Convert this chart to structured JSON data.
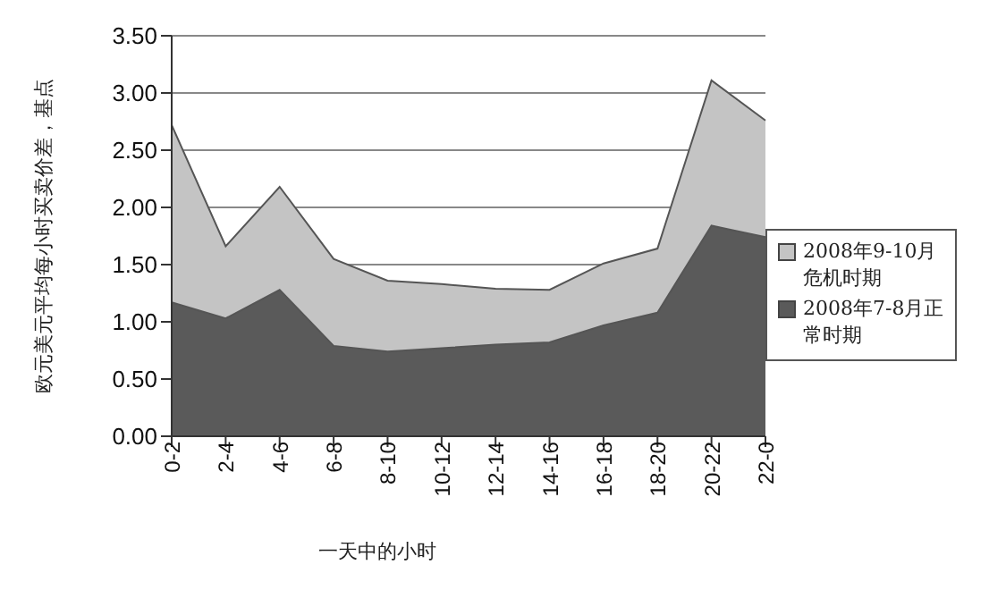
{
  "chart_data": {
    "type": "area",
    "ylabel": "欧元美元平均每小时买卖价差，基点",
    "xlabel": "一天中的小时",
    "categories": [
      "0-2",
      "2-4",
      "4-6",
      "6-8",
      "8-10",
      "10-12",
      "12-14",
      "14-16",
      "16-18",
      "18-20",
      "20-22",
      "22-0"
    ],
    "series": [
      {
        "name": "2008年9-10月危机时期",
        "color": "#c4c4c4",
        "values": [
          2.72,
          1.66,
          2.18,
          1.55,
          1.36,
          1.33,
          1.29,
          1.28,
          1.51,
          1.64,
          3.11,
          2.76
        ]
      },
      {
        "name": "2008年7-8月正常时期",
        "color": "#5a5a5a",
        "values": [
          1.17,
          1.03,
          1.28,
          0.79,
          0.74,
          0.77,
          0.8,
          0.82,
          0.97,
          1.08,
          1.84,
          1.74
        ]
      }
    ],
    "ylim": [
      0,
      3.5
    ],
    "yticks": [
      {
        "value": 0,
        "label": "0.00"
      },
      {
        "value": 0.5,
        "label": "0.50"
      },
      {
        "value": 1,
        "label": "1.00"
      },
      {
        "value": 1.5,
        "label": "1.50"
      },
      {
        "value": 2,
        "label": "2.00"
      },
      {
        "value": 2.5,
        "label": "2.50"
      },
      {
        "value": 3,
        "label": "3.00"
      },
      {
        "value": 3.5,
        "label": "3.50"
      }
    ],
    "grid": "y",
    "legend": "right"
  }
}
